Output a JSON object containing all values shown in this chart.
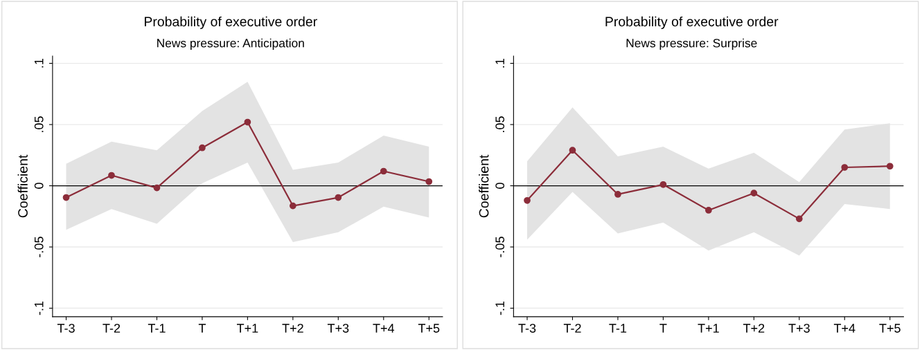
{
  "chart_data": [
    {
      "type": "line",
      "title": "Probability of executive order",
      "subtitle": "News pressure: Anticipation",
      "ylabel": "Coefficient",
      "categories": [
        "T-3",
        "T-2",
        "T-1",
        "T",
        "T+1",
        "T+2",
        "T+3",
        "T+4",
        "T+5"
      ],
      "series": [
        {
          "color": "#8c2d3a",
          "values": [
            -0.0096,
            0.0085,
            -0.0017,
            0.031,
            0.052,
            -0.0164,
            -0.0096,
            0.0119,
            0.0034
          ],
          "lower": [
            -0.036,
            -0.019,
            -0.031,
            0.002,
            0.019,
            -0.046,
            -0.038,
            -0.017,
            -0.026
          ],
          "upper": [
            0.018,
            0.036,
            0.029,
            0.061,
            0.085,
            0.013,
            0.019,
            0.041,
            0.032
          ]
        }
      ],
      "ylim": [
        -0.107,
        0.106
      ],
      "yticks": [
        {
          "value": -0.1,
          "label": "-.1"
        },
        {
          "value": -0.05,
          "label": "-.05"
        },
        {
          "value": 0,
          "label": "0"
        },
        {
          "value": 0.05,
          "label": ".05"
        },
        {
          "value": 0.1,
          "label": ".1"
        }
      ],
      "ref_lines": [
        {
          "axis": "y",
          "value": 0,
          "color": "#000000",
          "line_style": "solid"
        }
      ],
      "grid": "y",
      "marker": "circle",
      "line_style": "solid"
    },
    {
      "type": "line",
      "title": "Probability of executive order",
      "subtitle": "News pressure: Surprise",
      "ylabel": "Coefficient",
      "categories": [
        "T-3",
        "T-2",
        "T-1",
        "T",
        "T+1",
        "T+2",
        "T+3",
        "T+4",
        "T+5"
      ],
      "series": [
        {
          "color": "#8c2d3a",
          "values": [
            -0.012,
            0.029,
            -0.007,
            0.001,
            -0.02,
            -0.006,
            -0.027,
            0.015,
            0.016
          ],
          "lower": [
            -0.044,
            -0.005,
            -0.039,
            -0.03,
            -0.053,
            -0.038,
            -0.057,
            -0.015,
            -0.019
          ],
          "upper": [
            0.02,
            0.064,
            0.024,
            0.032,
            0.014,
            0.027,
            0.003,
            0.046,
            0.051
          ]
        }
      ],
      "ylim": [
        -0.107,
        0.106
      ],
      "yticks": [
        {
          "value": -0.1,
          "label": "-.1"
        },
        {
          "value": -0.05,
          "label": "-.05"
        },
        {
          "value": 0,
          "label": "0"
        },
        {
          "value": 0.05,
          "label": ".05"
        },
        {
          "value": 0.1,
          "label": ".1"
        }
      ],
      "ref_lines": [
        {
          "axis": "y",
          "value": 0,
          "color": "#000000",
          "line_style": "solid"
        }
      ],
      "grid": "y",
      "marker": "circle",
      "line_style": "solid"
    }
  ]
}
